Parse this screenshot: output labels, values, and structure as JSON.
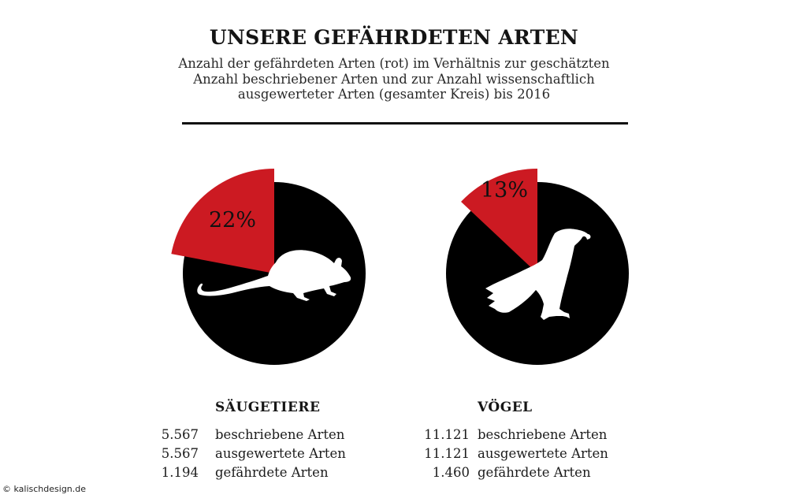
{
  "header": {
    "title": "UNSERE GEFÄHRDETEN ARTEN",
    "subtitle_lines": [
      "Anzahl der gefährdeten Arten (rot) im Verhältnis zur geschätzten",
      "Anzahl beschriebener Arten und zur Anzahl wissenschaftlich",
      "ausgewerteter Arten (gesamter Kreis) bis 2016"
    ]
  },
  "colors": {
    "threatened": "#cc1a22",
    "total": "#000000",
    "silhouette": "#ffffff"
  },
  "chart_data": {
    "type": "pie",
    "title": "UNSERE GEFÄHRDETEN ARTEN",
    "charts": [
      {
        "category": "SÄUGETIERE",
        "icon": "mouse-silhouette-icon",
        "threatened_percent": 22,
        "label": "22%",
        "slices": [
          {
            "name": "gefährdet",
            "value": 22,
            "color": "#cc1a22"
          },
          {
            "name": "nicht gefährdet",
            "value": 78,
            "color": "#000000"
          }
        ],
        "stats": [
          {
            "value": "5.567",
            "label": "beschriebene Arten"
          },
          {
            "value": "5.567",
            "label": "ausgewertete Arten"
          },
          {
            "value": "1.194",
            "label": "gefährdete Arten"
          }
        ]
      },
      {
        "category": "VÖGEL",
        "icon": "eagle-silhouette-icon",
        "threatened_percent": 13,
        "label": "13%",
        "slices": [
          {
            "name": "gefährdet",
            "value": 13,
            "color": "#cc1a22"
          },
          {
            "name": "nicht gefährdet",
            "value": 87,
            "color": "#000000"
          }
        ],
        "stats": [
          {
            "value": "11.121",
            "label": "beschriebene Arten"
          },
          {
            "value": "11.121",
            "label": "ausgewertete Arten"
          },
          {
            "value": "1.460",
            "label": "gefährdete Arten"
          }
        ]
      }
    ]
  },
  "footer": {
    "credit": "© kalischdesign.de"
  }
}
